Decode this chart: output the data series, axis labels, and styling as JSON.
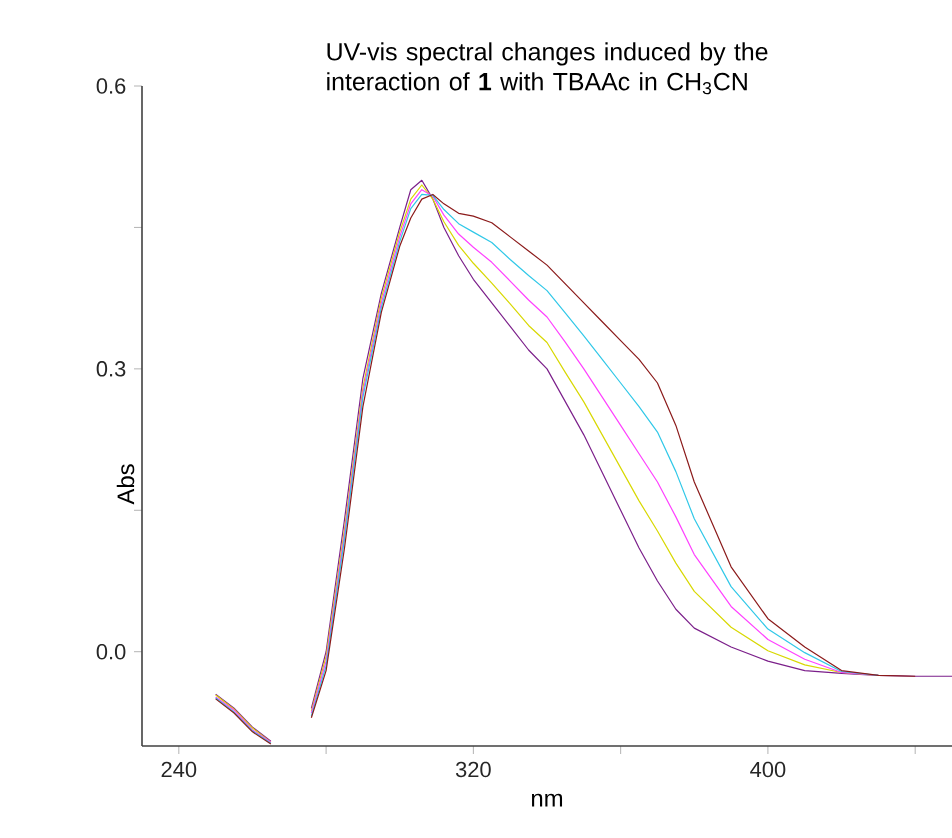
{
  "chart_data": {
    "type": "line",
    "title": "UV-vis spectral changes induced by the interaction of **1** with TBAAc in CH$_{3}$CN",
    "xlabel": "nm",
    "ylabel": "Abs",
    "xlim": [
      230,
      450
    ],
    "ylim": [
      -0.1,
      0.6
    ],
    "xticks": [
      240,
      {
        "value": 280,
        "label": null
      },
      320,
      {
        "value": 360,
        "label": null
      },
      400,
      {
        "value": 440,
        "label": null
      }
    ],
    "yticks": [
      {
        "value": 0,
        "label": "0.0"
      },
      {
        "value": 0.15,
        "label": null
      },
      0.3,
      {
        "value": 0.45,
        "label": null
      },
      0.6
    ],
    "marker": "none",
    "line_style": "solid",
    "x": [
      250,
      255,
      260,
      265,
      268,
      270,
      272,
      276,
      280,
      285,
      290,
      295,
      300,
      303,
      306,
      309,
      312,
      316,
      320,
      325,
      330,
      335,
      340,
      345,
      350,
      355,
      360,
      365,
      370,
      375,
      380,
      390,
      400,
      410,
      420,
      430,
      440,
      450
    ],
    "series": [
      {
        "color": "#7b1f8a",
        "values": [
          -0.045,
          -0.06,
          -0.08,
          -0.095,
          null,
          null,
          null,
          -0.06,
          0.0,
          0.14,
          0.29,
          0.38,
          0.45,
          0.49,
          0.5,
          0.48,
          0.45,
          0.42,
          0.395,
          0.37,
          0.345,
          0.32,
          0.3,
          0.265,
          0.23,
          0.19,
          0.15,
          0.11,
          0.075,
          0.045,
          0.025,
          0.005,
          -0.01,
          -0.02,
          -0.023,
          -0.025,
          -0.026,
          -0.026
        ]
      },
      {
        "color": "#d8d800",
        "values": [
          -0.046,
          -0.061,
          -0.081,
          -0.096,
          null,
          null,
          null,
          -0.063,
          -0.005,
          0.13,
          0.28,
          0.375,
          0.445,
          0.48,
          0.495,
          0.48,
          0.456,
          0.431,
          0.412,
          0.391,
          0.369,
          0.346,
          0.328,
          0.296,
          0.265,
          0.23,
          0.195,
          0.16,
          0.128,
          0.094,
          0.064,
          0.026,
          0.001,
          -0.014,
          -0.022,
          -0.025,
          null,
          null
        ]
      },
      {
        "color": "#ff40ff",
        "values": [
          -0.048,
          -0.062,
          -0.083,
          -0.096,
          null,
          null,
          null,
          -0.065,
          -0.01,
          0.125,
          0.275,
          0.37,
          0.44,
          0.475,
          0.49,
          0.483,
          0.463,
          0.443,
          0.429,
          0.413,
          0.393,
          0.373,
          0.355,
          0.328,
          0.3,
          0.27,
          0.24,
          0.21,
          0.18,
          0.143,
          0.103,
          0.048,
          0.013,
          -0.008,
          -0.022,
          -0.025,
          null,
          null
        ]
      },
      {
        "color": "#30c8e8",
        "values": [
          -0.049,
          -0.064,
          -0.084,
          -0.097,
          null,
          null,
          null,
          -0.068,
          -0.015,
          0.12,
          0.27,
          0.365,
          0.435,
          0.47,
          0.485,
          0.484,
          0.469,
          0.454,
          0.445,
          0.434,
          0.416,
          0.399,
          0.383,
          0.359,
          0.335,
          0.31,
          0.285,
          0.26,
          0.233,
          0.191,
          0.141,
          0.069,
          0.024,
          -0.001,
          -0.021,
          -0.025,
          null,
          null
        ]
      },
      {
        "color": "#8b1a1a",
        "values": [
          -0.05,
          -0.065,
          -0.085,
          -0.098,
          null,
          null,
          null,
          -0.07,
          -0.02,
          0.11,
          0.26,
          0.36,
          0.43,
          0.46,
          0.48,
          0.485,
          0.475,
          0.465,
          0.462,
          0.455,
          0.44,
          0.425,
          0.41,
          0.39,
          0.37,
          0.35,
          0.33,
          0.31,
          0.285,
          0.24,
          0.18,
          0.09,
          0.035,
          0.005,
          -0.02,
          -0.025,
          -0.026,
          null
        ]
      }
    ]
  }
}
